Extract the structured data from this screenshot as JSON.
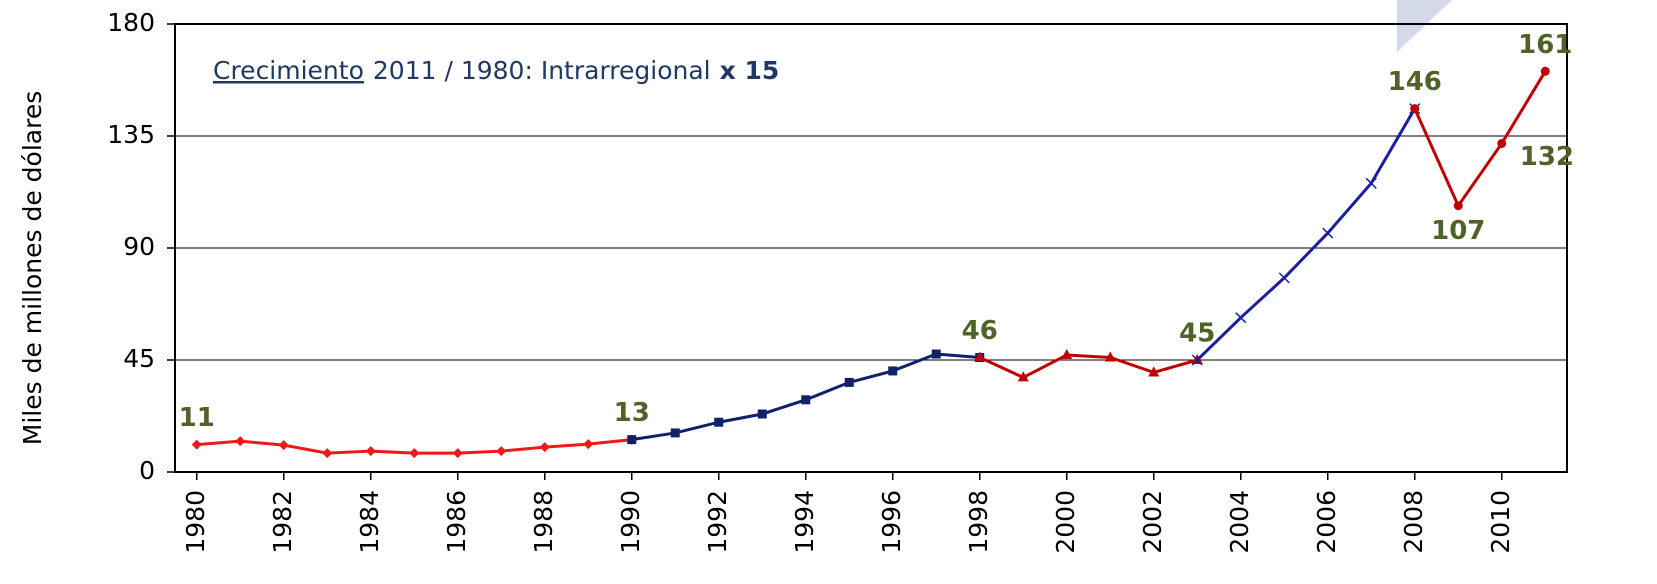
{
  "chart_data": {
    "type": "line",
    "y_label": "Miles de millones de dólares",
    "annotation": [
      "Crecimiento",
      "2011 / 1980: Intrarregional",
      "x 15"
    ],
    "x": [
      1980,
      1981,
      1982,
      1983,
      1984,
      1985,
      1986,
      1987,
      1988,
      1989,
      1990,
      1991,
      1992,
      1993,
      1994,
      1995,
      1996,
      1997,
      1998,
      1999,
      2000,
      2001,
      2002,
      2003,
      2004,
      2005,
      2006,
      2007,
      2008,
      2009,
      2010,
      2011
    ],
    "xlim": [
      1979.5,
      2011.5
    ],
    "xticks": [
      1980,
      1982,
      1984,
      1986,
      1988,
      1990,
      1992,
      1994,
      1996,
      1998,
      2000,
      2002,
      2004,
      2006,
      2008,
      2010
    ],
    "ylim": [
      0,
      180
    ],
    "yticks": [
      0,
      45,
      90,
      135,
      180
    ],
    "grid": true,
    "label_color": "#4f6228",
    "series": [
      {
        "color": "#f01818",
        "marker": "diamond",
        "values": [
          11,
          12.4,
          10.8,
          7.6,
          8.4,
          7.6,
          7.6,
          8.4,
          10,
          11.2,
          13,
          null,
          null,
          null,
          null,
          null,
          null,
          null,
          null,
          null,
          null,
          null,
          null,
          null,
          null,
          null,
          null,
          null,
          null,
          null,
          null,
          null
        ],
        "value_labels": [
          "11",
          null,
          null,
          null,
          null,
          null,
          null,
          null,
          null,
          null,
          "13",
          null,
          null,
          null,
          null,
          null,
          null,
          null,
          null,
          null,
          null,
          null,
          null,
          null,
          null,
          null,
          null,
          null,
          null,
          null,
          null,
          null
        ]
      },
      {
        "color": "#0f2168",
        "marker": "square",
        "values": [
          null,
          null,
          null,
          null,
          null,
          null,
          null,
          null,
          null,
          null,
          13,
          15.7,
          20,
          23.3,
          29,
          36,
          40.6,
          47.4,
          46,
          null,
          null,
          null,
          null,
          null,
          null,
          null,
          null,
          null,
          null,
          null,
          null,
          null
        ],
        "value_labels": [
          null,
          null,
          null,
          null,
          null,
          null,
          null,
          null,
          null,
          null,
          null,
          null,
          null,
          null,
          null,
          null,
          null,
          null,
          "46",
          null,
          null,
          null,
          null,
          null,
          null,
          null,
          null,
          null,
          null,
          null,
          null,
          null
        ]
      },
      {
        "color": "#c00000",
        "marker": "triangle",
        "values": [
          null,
          null,
          null,
          null,
          null,
          null,
          null,
          null,
          null,
          null,
          null,
          null,
          null,
          null,
          null,
          null,
          null,
          null,
          46,
          38,
          47,
          46,
          40,
          45,
          null,
          null,
          null,
          null,
          null,
          null,
          null,
          null
        ],
        "value_labels": [
          null,
          null,
          null,
          null,
          null,
          null,
          null,
          null,
          null,
          null,
          null,
          null,
          null,
          null,
          null,
          null,
          null,
          null,
          null,
          null,
          null,
          null,
          null,
          "45",
          null,
          null,
          null,
          null,
          null,
          null,
          null,
          null
        ]
      },
      {
        "color": "#1a1f9c",
        "marker": "x",
        "values": [
          null,
          null,
          null,
          null,
          null,
          null,
          null,
          null,
          null,
          null,
          null,
          null,
          null,
          null,
          null,
          null,
          null,
          null,
          null,
          null,
          null,
          null,
          null,
          45,
          62,
          78,
          96,
          116,
          146,
          null,
          null,
          null
        ],
        "value_labels": [
          null,
          null,
          null,
          null,
          null,
          null,
          null,
          null,
          null,
          null,
          null,
          null,
          null,
          null,
          null,
          null,
          null,
          null,
          null,
          null,
          null,
          null,
          null,
          null,
          null,
          null,
          null,
          null,
          null,
          null,
          null,
          null
        ]
      },
      {
        "color": "#c00000",
        "marker": "circle",
        "values": [
          null,
          null,
          null,
          null,
          null,
          null,
          null,
          null,
          null,
          null,
          null,
          null,
          null,
          null,
          null,
          null,
          null,
          null,
          null,
          null,
          null,
          null,
          null,
          null,
          null,
          null,
          null,
          null,
          146,
          107,
          132,
          161
        ],
        "value_labels": [
          null,
          null,
          null,
          null,
          null,
          null,
          null,
          null,
          null,
          null,
          null,
          null,
          null,
          null,
          null,
          null,
          null,
          null,
          null,
          null,
          null,
          null,
          null,
          null,
          null,
          null,
          null,
          null,
          "146",
          "107",
          "132",
          "161"
        ]
      }
    ]
  }
}
